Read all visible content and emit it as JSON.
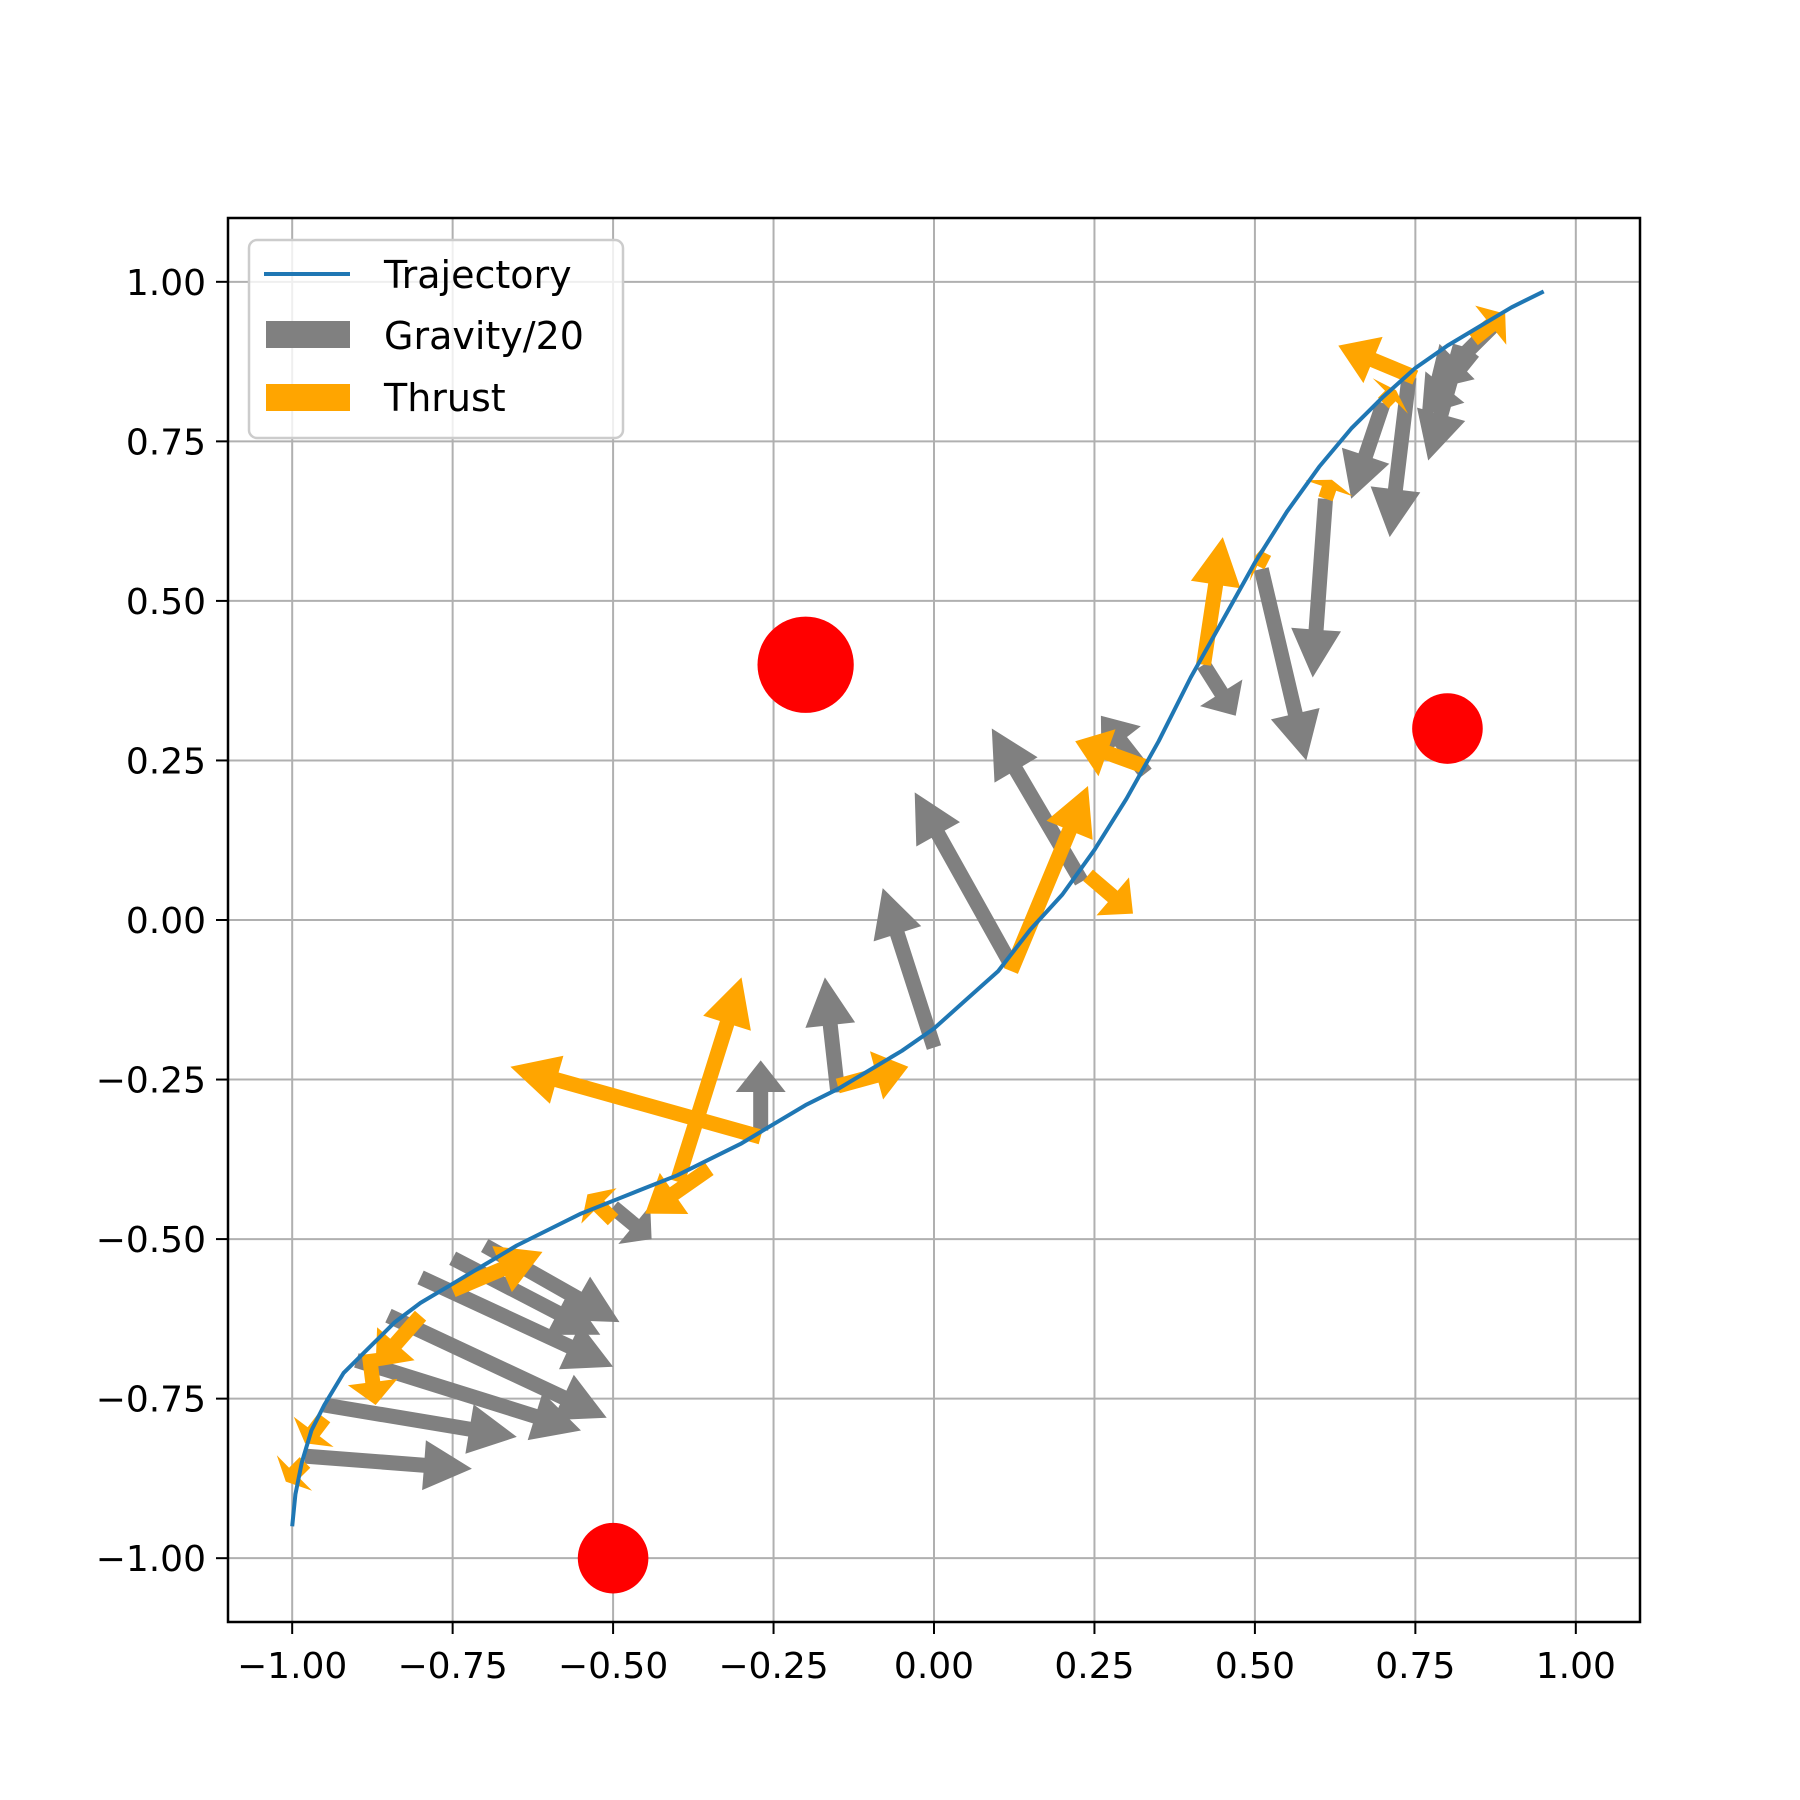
{
  "chart_data": {
    "type": "line",
    "title": "",
    "xlabel": "",
    "ylabel": "",
    "xlim": [
      -1.1,
      1.1
    ],
    "ylim": [
      -1.1,
      1.1
    ],
    "grid": true,
    "legend_position": "top-left",
    "x_ticks": [
      -1.0,
      -0.75,
      -0.5,
      -0.25,
      0.0,
      0.25,
      0.5,
      0.75,
      1.0
    ],
    "y_ticks": [
      -1.0,
      -0.75,
      -0.5,
      -0.25,
      0.0,
      0.25,
      0.5,
      0.75,
      1.0
    ],
    "x_tick_labels": [
      "−1.00",
      "−0.75",
      "−0.50",
      "−0.25",
      "0.00",
      "0.25",
      "0.50",
      "0.75",
      "1.00"
    ],
    "y_tick_labels": [
      "−1.00",
      "−0.75",
      "−0.50",
      "−0.25",
      "0.00",
      "0.25",
      "0.50",
      "0.75",
      "1.00"
    ],
    "legend": [
      {
        "label": "Trajectory",
        "kind": "line",
        "color": "#1f77b4"
      },
      {
        "label": "Gravity/20",
        "kind": "patch",
        "color": "#808080"
      },
      {
        "label": "Thrust",
        "kind": "patch",
        "color": "#ffa500"
      }
    ],
    "trajectory": {
      "name": "Trajectory",
      "color": "#1f77b4",
      "x": [
        -1.0,
        -0.995,
        -0.985,
        -0.97,
        -0.95,
        -0.92,
        -0.88,
        -0.84,
        -0.8,
        -0.75,
        -0.7,
        -0.65,
        -0.6,
        -0.55,
        -0.5,
        -0.45,
        -0.4,
        -0.35,
        -0.3,
        -0.25,
        -0.2,
        -0.15,
        -0.1,
        -0.05,
        0.0,
        0.05,
        0.1,
        0.15,
        0.2,
        0.25,
        0.3,
        0.35,
        0.4,
        0.45,
        0.5,
        0.55,
        0.6,
        0.65,
        0.7,
        0.75,
        0.8,
        0.85,
        0.9,
        0.95
      ],
      "y": [
        -0.95,
        -0.9,
        -0.85,
        -0.8,
        -0.76,
        -0.71,
        -0.67,
        -0.63,
        -0.6,
        -0.57,
        -0.54,
        -0.51,
        -0.485,
        -0.46,
        -0.44,
        -0.42,
        -0.4,
        -0.375,
        -0.35,
        -0.32,
        -0.29,
        -0.265,
        -0.235,
        -0.205,
        -0.17,
        -0.125,
        -0.08,
        -0.015,
        0.04,
        0.11,
        0.19,
        0.28,
        0.38,
        0.47,
        0.56,
        0.64,
        0.71,
        0.77,
        0.82,
        0.865,
        0.9,
        0.93,
        0.96,
        0.985
      ]
    },
    "gravity_arrows": {
      "name": "Gravity/20",
      "color": "#808080",
      "x0": [
        -0.98,
        -0.95,
        -0.9,
        -0.85,
        -0.8,
        -0.75,
        -0.7,
        -0.5,
        -0.27,
        -0.15,
        0.0,
        0.12,
        0.23,
        0.33,
        0.42,
        0.51,
        0.57,
        0.61,
        0.7,
        0.74,
        0.82,
        0.84,
        0.87
      ],
      "y0": [
        -0.84,
        -0.76,
        -0.69,
        -0.62,
        -0.56,
        -0.53,
        -0.51,
        -0.45,
        -0.33,
        -0.27,
        -0.2,
        -0.07,
        0.06,
        0.23,
        0.4,
        0.55,
        0.36,
        0.66,
        0.81,
        0.85,
        0.9,
        0.89,
        0.93
      ],
      "dx": [
        0.26,
        0.3,
        0.35,
        0.34,
        0.3,
        0.23,
        0.21,
        0.06,
        0.0,
        -0.02,
        -0.08,
        -0.15,
        -0.14,
        -0.07,
        0.05,
        0.07,
        0.0,
        -0.02,
        -0.05,
        -0.03,
        -0.05,
        -0.08,
        -0.1
      ],
      "dy": [
        -0.02,
        -0.05,
        -0.11,
        -0.16,
        -0.14,
        -0.12,
        -0.12,
        -0.05,
        0.11,
        0.18,
        0.25,
        0.27,
        0.24,
        0.09,
        -0.08,
        -0.3,
        0.0,
        -0.28,
        -0.15,
        -0.25,
        -0.18,
        -0.1,
        -0.1
      ]
    },
    "thrust_arrows": {
      "name": "Thrust",
      "color": "#ffa500",
      "x0": [
        -0.98,
        -0.95,
        -0.88,
        -0.8,
        -0.75,
        -0.5,
        -0.27,
        -0.35,
        -0.4,
        -0.15,
        0.12,
        0.24,
        0.33,
        0.42,
        0.52,
        0.61,
        0.7,
        0.75,
        0.84
      ],
      "y0": [
        -0.85,
        -0.78,
        -0.68,
        -0.62,
        -0.58,
        -0.47,
        -0.34,
        -0.39,
        -0.41,
        -0.26,
        -0.08,
        0.07,
        0.24,
        0.4,
        0.56,
        0.66,
        0.81,
        0.85,
        0.91
      ],
      "dx": [
        -0.03,
        -0.03,
        0.01,
        -0.07,
        0.14,
        -0.04,
        -0.39,
        -0.1,
        0.1,
        0.11,
        0.12,
        0.07,
        -0.11,
        0.03,
        -0.02,
        0.01,
        0.02,
        -0.12,
        0.05
      ],
      "dy": [
        -0.03,
        -0.04,
        -0.08,
        -0.08,
        0.06,
        0.04,
        0.11,
        -0.07,
        0.32,
        0.03,
        0.29,
        -0.06,
        0.04,
        0.2,
        0.01,
        0.03,
        0.02,
        0.05,
        0.04
      ]
    },
    "obstacles": {
      "color": "#ff0000",
      "x": [
        -0.2,
        -0.5,
        0.8
      ],
      "y": [
        0.4,
        -1.0,
        0.3
      ],
      "radius": [
        0.075,
        0.055,
        0.055
      ]
    }
  }
}
